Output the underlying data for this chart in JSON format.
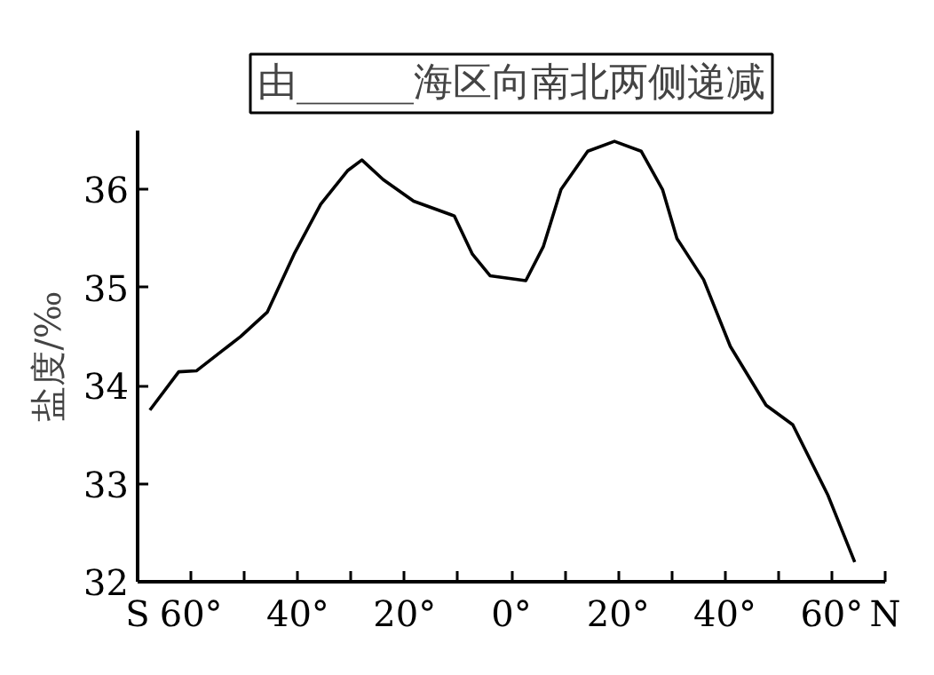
{
  "chart_data": {
    "type": "line",
    "title": "由______海区向南北两侧递减",
    "ylabel": "盐度/‰",
    "annotations": [
      "S",
      "N"
    ],
    "x": [
      -67.7,
      -62.3,
      -59,
      -50.7,
      -45.7,
      -40.7,
      -35.7,
      -30.7,
      -28,
      -24,
      -18.3,
      -10.7,
      -7.3,
      -4,
      2.7,
      6,
      9.3,
      14.3,
      19.3,
      24.3,
      28.3,
      31,
      36,
      41,
      47.7,
      52.7,
      59.3,
      64.3
    ],
    "series": [
      {
        "color": "#000000",
        "values": [
          33.75,
          34.14,
          34.15,
          34.5,
          34.75,
          35.34,
          35.85,
          36.19,
          36.3,
          36.1,
          35.88,
          35.73,
          35.34,
          35.12,
          35.07,
          35.42,
          36.0,
          36.39,
          36.49,
          36.39,
          36.0,
          35.5,
          35.08,
          34.4,
          33.8,
          33.6,
          32.88,
          32.2
        ]
      }
    ],
    "xlim": [
      -70,
      70
    ],
    "xticks": [
      {
        "value": -60,
        "label": "60°"
      },
      {
        "value": -50,
        "label": null
      },
      {
        "value": -40,
        "label": "40°"
      },
      {
        "value": -30,
        "label": null
      },
      {
        "value": -20,
        "label": "20°"
      },
      {
        "value": -10,
        "label": null
      },
      {
        "value": 0,
        "label": "0°"
      },
      {
        "value": 10,
        "label": null
      },
      {
        "value": 20,
        "label": "20°"
      },
      {
        "value": 30,
        "label": null
      },
      {
        "value": 40,
        "label": "40°"
      },
      {
        "value": 50,
        "label": null
      },
      {
        "value": 60,
        "label": "60°"
      }
    ],
    "ylim": [
      32,
      36.6
    ],
    "yticks": [
      32,
      33,
      34,
      35,
      36
    ],
    "grid": false,
    "marker": "none",
    "line_style": "solid"
  }
}
